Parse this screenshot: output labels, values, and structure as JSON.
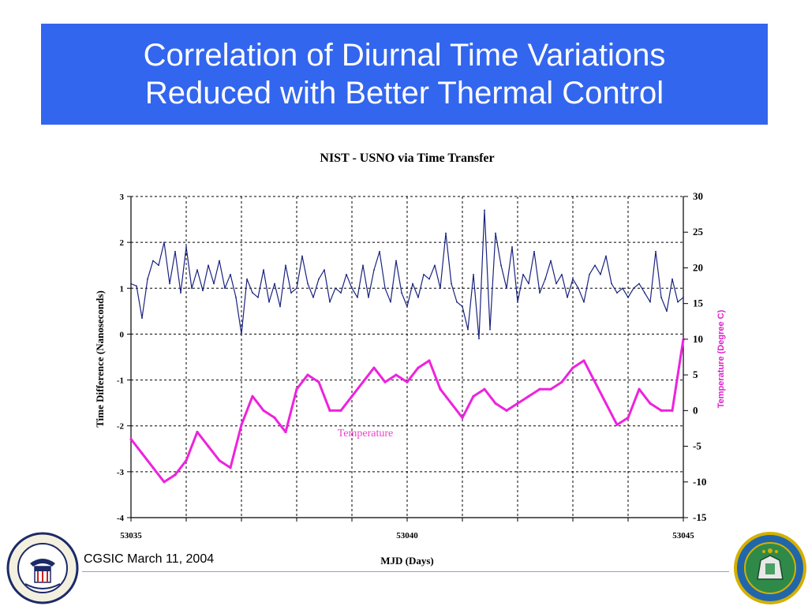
{
  "slide": {
    "title_line1": "Correlation of Diurnal Time Variations",
    "title_line2": "Reduced with Better Thermal Control",
    "footer": "CGSIC March 11, 2004",
    "banner_color": "#3366ee",
    "left_seal_text": "DEPARTMENT OF THE NAVY · U.S. NAVAL OBSERVATORY",
    "right_seal_text": "seal"
  },
  "chart_data": {
    "type": "line",
    "title": "NIST - USNO via Time Transfer",
    "xlabel": "MJD (Days)",
    "ylabel": "Time Difference (Nanoseconds)",
    "y2label": "Temperature (Degree C)",
    "xlim": [
      53035,
      53045
    ],
    "ylim": [
      -4,
      3
    ],
    "y2lim": [
      -15,
      30
    ],
    "xticks": [
      53035,
      53040,
      53045
    ],
    "xtick_labels": [
      "53035",
      "53040",
      "53045"
    ],
    "yticks": [
      3,
      2,
      1,
      0,
      -1,
      -2,
      -3,
      -4
    ],
    "ytick_labels": [
      "3",
      "2",
      "1",
      "0",
      "-1",
      "-2",
      "-3",
      "-4"
    ],
    "y2ticks": [
      30,
      25,
      20,
      15,
      10,
      5,
      0,
      -5,
      -10,
      -15
    ],
    "y2tick_labels": [
      "30",
      "25",
      "20",
      "15",
      "10",
      "5",
      "0",
      "-5",
      "-10",
      "-15"
    ],
    "grid": true,
    "annotation": "Temperature",
    "series": [
      {
        "axis": "left",
        "color": "#1a237e",
        "x": [
          53035.0,
          53035.1,
          53035.2,
          53035.3,
          53035.4,
          53035.5,
          53035.6,
          53035.7,
          53035.8,
          53035.9,
          53036.0,
          53036.1,
          53036.2,
          53036.3,
          53036.4,
          53036.5,
          53036.6,
          53036.7,
          53036.8,
          53036.9,
          53037.0,
          53037.1,
          53037.2,
          53037.3,
          53037.4,
          53037.5,
          53037.6,
          53037.7,
          53037.8,
          53037.9,
          53038.0,
          53038.1,
          53038.2,
          53038.3,
          53038.4,
          53038.5,
          53038.6,
          53038.7,
          53038.8,
          53038.9,
          53039.0,
          53039.1,
          53039.2,
          53039.3,
          53039.4,
          53039.5,
          53039.6,
          53039.7,
          53039.8,
          53039.9,
          53040.0,
          53040.1,
          53040.2,
          53040.3,
          53040.4,
          53040.5,
          53040.6,
          53040.7,
          53040.8,
          53040.9,
          53041.0,
          53041.1,
          53041.2,
          53041.3,
          53041.4,
          53041.5,
          53041.6,
          53041.7,
          53041.8,
          53041.9,
          53042.0,
          53042.1,
          53042.2,
          53042.3,
          53042.4,
          53042.5,
          53042.6,
          53042.7,
          53042.8,
          53042.9,
          53043.0,
          53043.1,
          53043.2,
          53043.3,
          53043.4,
          53043.5,
          53043.6,
          53043.7,
          53043.8,
          53043.9,
          53044.0,
          53044.1,
          53044.2,
          53044.3,
          53044.4,
          53044.5,
          53044.6,
          53044.7,
          53044.8,
          53044.9,
          53045.0
        ],
        "values": [
          1.1,
          1.05,
          0.35,
          1.2,
          1.6,
          1.5,
          2.0,
          1.1,
          1.8,
          0.9,
          1.9,
          1.0,
          1.4,
          0.95,
          1.5,
          1.1,
          1.6,
          1.0,
          1.3,
          0.8,
          0.0,
          1.2,
          0.9,
          0.8,
          1.4,
          0.7,
          1.1,
          0.6,
          1.5,
          0.9,
          1.0,
          1.7,
          1.1,
          0.8,
          1.2,
          1.4,
          0.7,
          1.0,
          0.9,
          1.3,
          1.0,
          0.8,
          1.5,
          0.8,
          1.4,
          1.8,
          1.0,
          0.7,
          1.6,
          0.9,
          0.6,
          1.1,
          0.8,
          1.3,
          1.2,
          1.5,
          1.0,
          2.2,
          1.1,
          0.7,
          0.6,
          0.1,
          1.3,
          -0.1,
          2.7,
          0.1,
          2.2,
          1.5,
          1.0,
          1.9,
          0.7,
          1.3,
          1.1,
          1.8,
          0.9,
          1.2,
          1.6,
          1.1,
          1.3,
          0.8,
          1.2,
          1.0,
          0.7,
          1.3,
          1.5,
          1.3,
          1.7,
          1.1,
          0.9,
          1.0,
          0.8,
          1.0,
          1.1,
          0.9,
          0.7,
          1.8,
          0.8,
          0.5,
          1.2,
          0.7,
          0.8
        ]
      },
      {
        "axis": "right",
        "name": "Temperature",
        "color": "#ee22dd",
        "x": [
          53035.0,
          53035.2,
          53035.4,
          53035.6,
          53035.8,
          53036.0,
          53036.2,
          53036.4,
          53036.6,
          53036.8,
          53037.0,
          53037.2,
          53037.4,
          53037.6,
          53037.8,
          53038.0,
          53038.2,
          53038.4,
          53038.6,
          53038.8,
          53039.0,
          53039.2,
          53039.4,
          53039.6,
          53039.8,
          53040.0,
          53040.2,
          53040.4,
          53040.6,
          53040.8,
          53041.0,
          53041.2,
          53041.4,
          53041.6,
          53041.8,
          53042.0,
          53042.2,
          53042.4,
          53042.6,
          53042.8,
          53043.0,
          53043.2,
          53043.4,
          53043.6,
          53043.8,
          53044.0,
          53044.2,
          53044.4,
          53044.6,
          53044.8,
          53045.0
        ],
        "values": [
          -4,
          -6,
          -8,
          -10,
          -9,
          -7,
          -3,
          -5,
          -7,
          -8,
          -2,
          2,
          0,
          -1,
          -3,
          3,
          5,
          4,
          0,
          0,
          2,
          4,
          6,
          4,
          5,
          4,
          6,
          7,
          3,
          1,
          -1,
          2,
          3,
          1,
          0,
          1,
          2,
          3,
          3,
          4,
          6,
          7,
          4,
          1,
          -2,
          -1,
          3,
          1,
          0,
          0,
          10
        ]
      }
    ]
  }
}
